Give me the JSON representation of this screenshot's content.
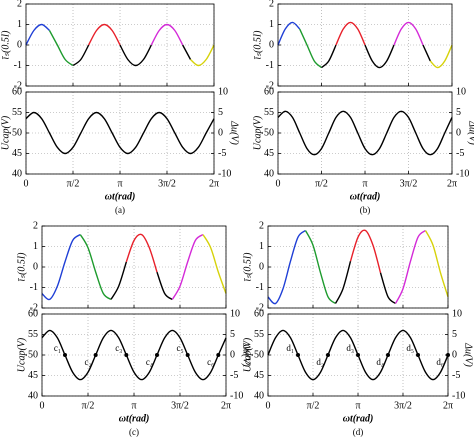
{
  "chart_data": [
    {
      "type": "line",
      "caption": "(a)",
      "xlabel": "ωt(rad)",
      "xlim": [
        0,
        6.283
      ],
      "grid": true,
      "xticks": [
        0,
        {
          "value": 1.571,
          "label": "π/2"
        },
        {
          "value": 3.142,
          "label": "π"
        },
        {
          "value": 4.712,
          "label": "3π/2"
        },
        {
          "value": 6.283,
          "label": "2π"
        }
      ],
      "top": {
        "ylabel": "īₛ(0.5I)",
        "ylim": [
          -2,
          2
        ],
        "yticks": [
          -2,
          -1,
          0,
          1,
          2
        ],
        "series": [
          {
            "color": "#1f3fd6",
            "x": [
              0,
              0.262,
              0.524,
              0.785
            ],
            "values": [
              0,
              0.707,
              1,
              0.707
            ]
          },
          {
            "color": "#1e9b2e",
            "x": [
              0.785,
              1.047,
              1.309,
              1.571
            ],
            "values": [
              0.707,
              0,
              -0.707,
              -1
            ]
          },
          {
            "color": "#000000",
            "x": [
              1.571,
              1.833,
              2.094
            ],
            "values": [
              -1,
              -0.707,
              0
            ]
          },
          {
            "color": "#e8202a",
            "x": [
              2.094,
              2.356,
              2.618,
              2.88,
              3.142
            ],
            "values": [
              0,
              0.707,
              1,
              0.707,
              0
            ]
          },
          {
            "color": "#000000",
            "x": [
              3.142,
              3.403,
              3.665,
              3.927,
              4.189
            ],
            "values": [
              0,
              -0.707,
              -1,
              -0.707,
              0
            ]
          },
          {
            "color": "#d42ad8",
            "x": [
              4.189,
              4.451,
              4.712,
              4.974,
              5.236
            ],
            "values": [
              0,
              0.707,
              1,
              0.707,
              0
            ]
          },
          {
            "color": "#000000",
            "x": [
              5.236,
              5.498
            ],
            "values": [
              0,
              -0.707
            ]
          },
          {
            "color": "#d6d20a",
            "x": [
              5.498,
              5.76,
              6.021,
              6.283
            ],
            "values": [
              -0.707,
              -1,
              -0.707,
              0
            ]
          }
        ]
      },
      "bottom": {
        "ylabel": "Ucap(V)",
        "ylim": [
          40,
          60
        ],
        "yticks": [
          40,
          45,
          50,
          55,
          60
        ],
        "y2label": "Δu(V)",
        "y2lim": [
          -10,
          10
        ],
        "y2ticks": [
          -10,
          -5,
          0,
          5,
          10
        ],
        "color": "#000000",
        "x": [
          0,
          0.262,
          0.524,
          0.785,
          1.047,
          1.309,
          1.571,
          1.833,
          2.094,
          2.356,
          2.618,
          2.88,
          3.142,
          3.403,
          3.665,
          3.927,
          4.189,
          4.451,
          4.712,
          4.974,
          5.236,
          5.498,
          5.76,
          6.021,
          6.283
        ],
        "values": [
          53.5,
          55,
          53.5,
          50,
          46.5,
          45,
          46.5,
          50,
          53.5,
          55,
          53.5,
          50,
          46.5,
          45,
          46.5,
          50,
          53.5,
          55,
          53.5,
          50,
          46.5,
          45,
          46.5,
          50,
          53.5
        ]
      }
    },
    {
      "type": "line",
      "caption": "(b)",
      "xlabel": "ωt(rad)",
      "xlim": [
        0,
        6.283
      ],
      "grid": true,
      "xticks": [
        0,
        {
          "value": 1.571,
          "label": "π/2"
        },
        {
          "value": 3.142,
          "label": "π"
        },
        {
          "value": 4.712,
          "label": "3π/2"
        },
        {
          "value": 6.283,
          "label": "2π"
        }
      ],
      "top": {
        "ylabel": "īₛ(0.5I)",
        "ylim": [
          -2,
          2
        ],
        "yticks": [
          -2,
          -1,
          0,
          1,
          2
        ],
        "series": [
          {
            "color": "#1f3fd6",
            "x": [
              0,
              0.262,
              0.524,
              0.785
            ],
            "values": [
              0,
              0.778,
              1.1,
              0.778
            ]
          },
          {
            "color": "#1e9b2e",
            "x": [
              0.785,
              1.047,
              1.309,
              1.571
            ],
            "values": [
              0.778,
              0,
              -0.778,
              -1.1
            ]
          },
          {
            "color": "#000000",
            "x": [
              1.571,
              1.833,
              2.094
            ],
            "values": [
              -1.1,
              -0.778,
              0
            ]
          },
          {
            "color": "#e8202a",
            "x": [
              2.094,
              2.356,
              2.618,
              2.88,
              3.142
            ],
            "values": [
              0,
              0.778,
              1.1,
              0.778,
              0
            ]
          },
          {
            "color": "#000000",
            "x": [
              3.142,
              3.403,
              3.665,
              3.927,
              4.189
            ],
            "values": [
              0,
              -0.778,
              -1.1,
              -0.778,
              0
            ]
          },
          {
            "color": "#d42ad8",
            "x": [
              4.189,
              4.451,
              4.712,
              4.974,
              5.236
            ],
            "values": [
              0,
              0.778,
              1.1,
              0.778,
              0
            ]
          },
          {
            "color": "#000000",
            "x": [
              5.236,
              5.498
            ],
            "values": [
              0,
              -0.778
            ]
          },
          {
            "color": "#d6d20a",
            "x": [
              5.498,
              5.76,
              6.021,
              6.283
            ],
            "values": [
              -0.778,
              -1.1,
              -0.778,
              0
            ]
          }
        ]
      },
      "bottom": {
        "ylabel": "Ucap(V)",
        "ylim": [
          40,
          60
        ],
        "yticks": [
          40,
          45,
          50,
          55,
          60
        ],
        "y2label": "Δu(V)",
        "y2lim": [
          -10,
          10
        ],
        "y2ticks": [
          -10,
          -5,
          0,
          5,
          10
        ],
        "color": "#000000",
        "x": [
          0,
          0.262,
          0.524,
          0.785,
          1.047,
          1.309,
          1.571,
          1.833,
          2.094,
          2.356,
          2.618,
          2.88,
          3.142,
          3.403,
          3.665,
          3.927,
          4.189,
          4.451,
          4.712,
          4.974,
          5.236,
          5.498,
          5.76,
          6.021,
          6.283
        ],
        "values": [
          53.8,
          55.3,
          53.8,
          50,
          46.2,
          44.7,
          46.2,
          50,
          53.8,
          55.3,
          53.8,
          50,
          46.2,
          44.7,
          46.2,
          50,
          53.8,
          55.3,
          53.8,
          50,
          46.2,
          44.7,
          46.2,
          50,
          53.8
        ]
      }
    },
    {
      "type": "line",
      "caption": "(c)",
      "xlabel": "ωt(rad)",
      "xlim": [
        0,
        6.283
      ],
      "grid": true,
      "xticks": [
        0,
        {
          "value": 1.571,
          "label": "π/2"
        },
        {
          "value": 3.142,
          "label": "π"
        },
        {
          "value": 4.712,
          "label": "3π/2"
        },
        {
          "value": 6.283,
          "label": "2π"
        }
      ],
      "top": {
        "ylabel": "īₛ(0.5I)",
        "ylim": [
          -2,
          2
        ],
        "yticks": [
          -2,
          -1,
          0,
          1,
          2
        ],
        "series": [
          {
            "color": "#1f3fd6",
            "x": [
              0,
              0.262,
              0.524,
              0.785,
              1.047,
              1.309
            ],
            "values": [
              -1.294,
              -1.581,
              -0.941,
              0.25,
              1.294,
              1.581
            ]
          },
          {
            "color": "#1e9b2e",
            "x": [
              1.309,
              1.571,
              1.833,
              2.094,
              2.356
            ],
            "values": [
              1.581,
              0.941,
              -0.25,
              -1.294,
              -1.581
            ]
          },
          {
            "color": "#000000",
            "x": [
              2.356,
              2.618,
              2.88
            ],
            "values": [
              -1.581,
              -0.941,
              0.25
            ]
          },
          {
            "color": "#e8202a",
            "x": [
              2.88,
              3.142,
              3.403,
              3.665,
              3.927
            ],
            "values": [
              0.25,
              1.294,
              1.581,
              0.941,
              -0.25
            ]
          },
          {
            "color": "#000000",
            "x": [
              3.927,
              4.189,
              4.451
            ],
            "values": [
              -0.25,
              -1.294,
              -1.581
            ]
          },
          {
            "color": "#d42ad8",
            "x": [
              4.451,
              4.712,
              4.974,
              5.236,
              5.498
            ],
            "values": [
              -1.581,
              -0.941,
              0.25,
              1.294,
              1.581
            ]
          },
          {
            "color": "#d6d20a",
            "x": [
              5.498,
              5.76,
              6.021,
              6.283
            ],
            "values": [
              1.581,
              0.941,
              -0.25,
              -1.294
            ]
          }
        ]
      },
      "bottom": {
        "ylabel": "Ucap(V)",
        "ylim": [
          40,
          60
        ],
        "yticks": [
          40,
          45,
          50,
          55,
          60
        ],
        "y2label": "Δu(V)",
        "y2lim": [
          -10,
          10
        ],
        "y2ticks": [
          -10,
          -5,
          0,
          5,
          10
        ],
        "color": "#000000",
        "x": [
          0,
          0.262,
          0.524,
          0.785,
          1.047,
          1.309,
          1.571,
          1.833,
          2.094,
          2.356,
          2.618,
          2.88,
          3.142,
          3.403,
          3.665,
          3.927,
          4.189,
          4.451,
          4.712,
          4.974,
          5.236,
          5.498,
          5.76,
          6.021,
          6.283
        ],
        "values": [
          54.2,
          56,
          54.2,
          50,
          45.8,
          44,
          45.8,
          50,
          54.2,
          56,
          54.2,
          50,
          45.8,
          44,
          45.8,
          50,
          54.2,
          56,
          54.2,
          50,
          45.8,
          44,
          45.8,
          50,
          54.2
        ],
        "annotations": [
          {
            "label": "c₁",
            "x": 0.785,
            "y": 50
          },
          {
            "label": "c₂",
            "x": 1.833,
            "y": 50
          },
          {
            "label": "c₃",
            "x": 2.88,
            "y": 50
          },
          {
            "label": "c₄",
            "x": 3.927,
            "y": 50
          },
          {
            "label": "c₅",
            "x": 4.974,
            "y": 50
          },
          {
            "label": "c₆",
            "x": 6.021,
            "y": 50
          }
        ]
      }
    },
    {
      "type": "line",
      "caption": "(d)",
      "xlabel": "ωt(rad)",
      "xlim": [
        0,
        6.283
      ],
      "grid": true,
      "xticks": [
        0,
        {
          "value": 1.571,
          "label": "π/2"
        },
        {
          "value": 3.142,
          "label": "π"
        },
        {
          "value": 4.712,
          "label": "3π/2"
        },
        {
          "value": 6.283,
          "label": "2π"
        }
      ],
      "top": {
        "ylabel": "īₛ(0.5I)",
        "ylim": [
          -2,
          2
        ],
        "yticks": [
          -2,
          -1,
          0,
          1,
          2
        ],
        "series": [
          {
            "color": "#1f3fd6",
            "x": [
              0,
              0.262,
              0.524,
              0.785,
              1.047,
              1.309
            ],
            "values": [
              -1.456,
              -1.779,
              -1.059,
              0.281,
              1.456,
              1.779
            ]
          },
          {
            "color": "#1e9b2e",
            "x": [
              1.309,
              1.571,
              1.833,
              2.094,
              2.356
            ],
            "values": [
              1.779,
              1.059,
              -0.281,
              -1.456,
              -1.779
            ]
          },
          {
            "color": "#000000",
            "x": [
              2.356,
              2.618,
              2.88
            ],
            "values": [
              -1.779,
              -1.059,
              0.281
            ]
          },
          {
            "color": "#e8202a",
            "x": [
              2.88,
              3.142,
              3.403,
              3.665,
              3.927
            ],
            "values": [
              0.281,
              1.456,
              1.779,
              1.059,
              -0.281
            ]
          },
          {
            "color": "#000000",
            "x": [
              3.927,
              4.189,
              4.451
            ],
            "values": [
              -0.281,
              -1.456,
              -1.779
            ]
          },
          {
            "color": "#d42ad8",
            "x": [
              4.451,
              4.712,
              4.974,
              5.236,
              5.498
            ],
            "values": [
              -1.779,
              -1.059,
              0.281,
              1.456,
              1.779
            ]
          },
          {
            "color": "#d6d20a",
            "x": [
              5.498,
              5.76,
              6.021,
              6.283
            ],
            "values": [
              1.779,
              1.059,
              -0.281,
              -1.456
            ]
          }
        ]
      },
      "bottom": {
        "ylabel": "Ucap(V)",
        "ylim": [
          40,
          60
        ],
        "yticks": [
          40,
          45,
          50,
          55,
          60
        ],
        "y2label": "Δu(V)",
        "y2lim": [
          -10,
          10
        ],
        "y2ticks": [
          -10,
          -5,
          0,
          5,
          10
        ],
        "color": "#000000",
        "x": [
          0,
          0.262,
          0.524,
          0.785,
          1.047,
          1.309,
          1.571,
          1.833,
          2.094,
          2.356,
          2.618,
          2.88,
          3.142,
          3.403,
          3.665,
          3.927,
          4.189,
          4.451,
          4.712,
          4.974,
          5.236,
          5.498,
          5.76,
          6.021,
          6.283
        ],
        "values": [
          50,
          54.2,
          56,
          54.2,
          50,
          45.8,
          44,
          45.8,
          50,
          54.2,
          56,
          54.2,
          50,
          45.8,
          44,
          45.8,
          50,
          54.2,
          56,
          54.2,
          50,
          45.8,
          44,
          45.8,
          50
        ],
        "annotations": [
          {
            "label": "d₁",
            "x": 1.047,
            "y": 50
          },
          {
            "label": "d₂",
            "x": 2.094,
            "y": 50
          },
          {
            "label": "d₃",
            "x": 3.142,
            "y": 50
          },
          {
            "label": "d₄",
            "x": 4.189,
            "y": 50
          },
          {
            "label": "d₅",
            "x": 5.236,
            "y": 50
          },
          {
            "label": "d₆",
            "x": 6.283,
            "y": 50
          }
        ]
      }
    }
  ]
}
